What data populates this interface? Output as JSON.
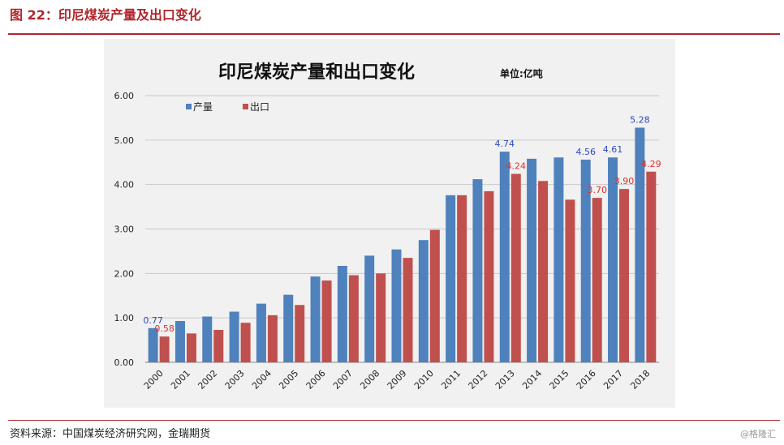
{
  "header": {
    "figure_title": "图 22：印尼煤炭产量及出口变化"
  },
  "footer": {
    "source": "资料来源：中国煤炭经济研究网，金瑞期货",
    "watermark": "@格隆汇"
  },
  "chart_data": {
    "type": "bar",
    "title": "印尼煤炭产量和出口变化",
    "unit": "单位:亿吨",
    "categories": [
      "2000",
      "2001",
      "2002",
      "2003",
      "2004",
      "2005",
      "2006",
      "2007",
      "2008",
      "2009",
      "2010",
      "2011",
      "2012",
      "2013",
      "2014",
      "2015",
      "2016",
      "2017",
      "2018"
    ],
    "series": [
      {
        "name": "产量",
        "color": "#4f81bd",
        "label_color": "#2f48c0",
        "values": [
          0.77,
          0.93,
          1.03,
          1.14,
          1.32,
          1.52,
          1.93,
          2.17,
          2.4,
          2.54,
          2.75,
          3.76,
          4.12,
          4.74,
          4.58,
          4.61,
          4.56,
          4.61,
          5.28
        ],
        "data_labels": {
          "0": "0.77",
          "13": "4.74",
          "16": "4.56",
          "17": "4.61",
          "18": "5.28"
        }
      },
      {
        "name": "出口",
        "color": "#c0504d",
        "label_color": "#e03030",
        "values": [
          0.58,
          0.65,
          0.73,
          0.89,
          1.06,
          1.29,
          1.84,
          1.96,
          2.0,
          2.35,
          2.98,
          3.76,
          3.85,
          4.24,
          4.08,
          3.66,
          3.7,
          3.9,
          4.29
        ],
        "data_labels": {
          "0": "0.58",
          "13": "4.24",
          "16": "3.70",
          "17": "3.90",
          "18": "4.29"
        }
      }
    ],
    "y_ticks": [
      "0.00",
      "1.00",
      "2.00",
      "3.00",
      "4.00",
      "5.00",
      "6.00"
    ],
    "ylim": [
      0,
      6
    ],
    "grid": true,
    "legend_position": "top-left"
  }
}
